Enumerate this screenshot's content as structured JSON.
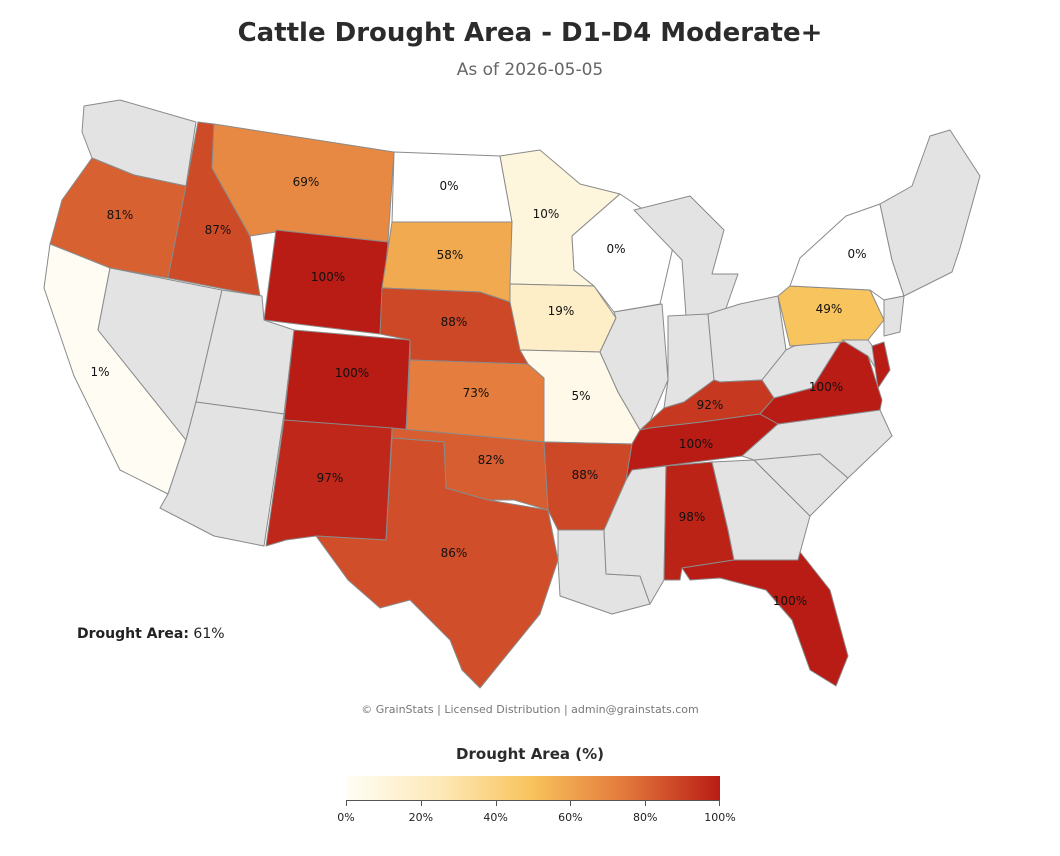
{
  "title": "Cattle Drought Area - D1-D4 Moderate+",
  "subtitle": "As of 2026-05-05",
  "summary": {
    "label": "Drought Area:",
    "value": "61%"
  },
  "copyright": "© GrainStats | Licensed Distribution | admin@grainstats.com",
  "legend": {
    "title": "Drought Area (%)",
    "ticks": [
      "0%",
      "20%",
      "40%",
      "60%",
      "80%",
      "100%"
    ]
  },
  "colors": {
    "no_data": "#e3e3e3",
    "scale": [
      "#fffdf5",
      "#fde9b8",
      "#f8c25a",
      "#e2773b",
      "#b91c14"
    ]
  },
  "states": [
    {
      "code": "WA",
      "value": null
    },
    {
      "code": "OR",
      "value": 81,
      "label": "81%"
    },
    {
      "code": "CA",
      "value": 1,
      "label": "1%"
    },
    {
      "code": "NV",
      "value": null
    },
    {
      "code": "ID",
      "value": 87,
      "label": "87%"
    },
    {
      "code": "MT",
      "value": 69,
      "label": "69%"
    },
    {
      "code": "WY",
      "value": 100,
      "label": "100%"
    },
    {
      "code": "UT",
      "value": null
    },
    {
      "code": "AZ",
      "value": null
    },
    {
      "code": "CO",
      "value": 100,
      "label": "100%"
    },
    {
      "code": "NM",
      "value": 97,
      "label": "97%"
    },
    {
      "code": "ND",
      "value": 0,
      "label": "0%"
    },
    {
      "code": "SD",
      "value": 58,
      "label": "58%"
    },
    {
      "code": "NE",
      "value": 88,
      "label": "88%"
    },
    {
      "code": "KS",
      "value": 73,
      "label": "73%"
    },
    {
      "code": "OK",
      "value": 82,
      "label": "82%"
    },
    {
      "code": "TX",
      "value": 86,
      "label": "86%"
    },
    {
      "code": "MN",
      "value": 10,
      "label": "10%"
    },
    {
      "code": "IA",
      "value": 19,
      "label": "19%"
    },
    {
      "code": "MO",
      "value": 5,
      "label": "5%"
    },
    {
      "code": "AR",
      "value": 88,
      "label": "88%"
    },
    {
      "code": "LA",
      "value": null
    },
    {
      "code": "WI",
      "value": 0,
      "label": "0%"
    },
    {
      "code": "IL",
      "value": null
    },
    {
      "code": "MI",
      "value": null
    },
    {
      "code": "IN",
      "value": null
    },
    {
      "code": "OH",
      "value": null
    },
    {
      "code": "KY",
      "value": 92,
      "label": "92%"
    },
    {
      "code": "TN",
      "value": 100,
      "label": "100%"
    },
    {
      "code": "MS",
      "value": null
    },
    {
      "code": "AL",
      "value": 98,
      "label": "98%"
    },
    {
      "code": "GA",
      "value": null
    },
    {
      "code": "FL",
      "value": 100,
      "label": "100%"
    },
    {
      "code": "SC",
      "value": null
    },
    {
      "code": "NC",
      "value": null
    },
    {
      "code": "VA",
      "value": 100,
      "label": "100%"
    },
    {
      "code": "WV",
      "value": null
    },
    {
      "code": "PA",
      "value": 49,
      "label": "49%"
    },
    {
      "code": "NY",
      "value": 0,
      "label": "0%"
    },
    {
      "code": "NJ",
      "value": null
    },
    {
      "code": "MD",
      "value": null
    },
    {
      "code": "DE",
      "value": 100
    },
    {
      "code": "NE_REGION",
      "value": null
    }
  ]
}
